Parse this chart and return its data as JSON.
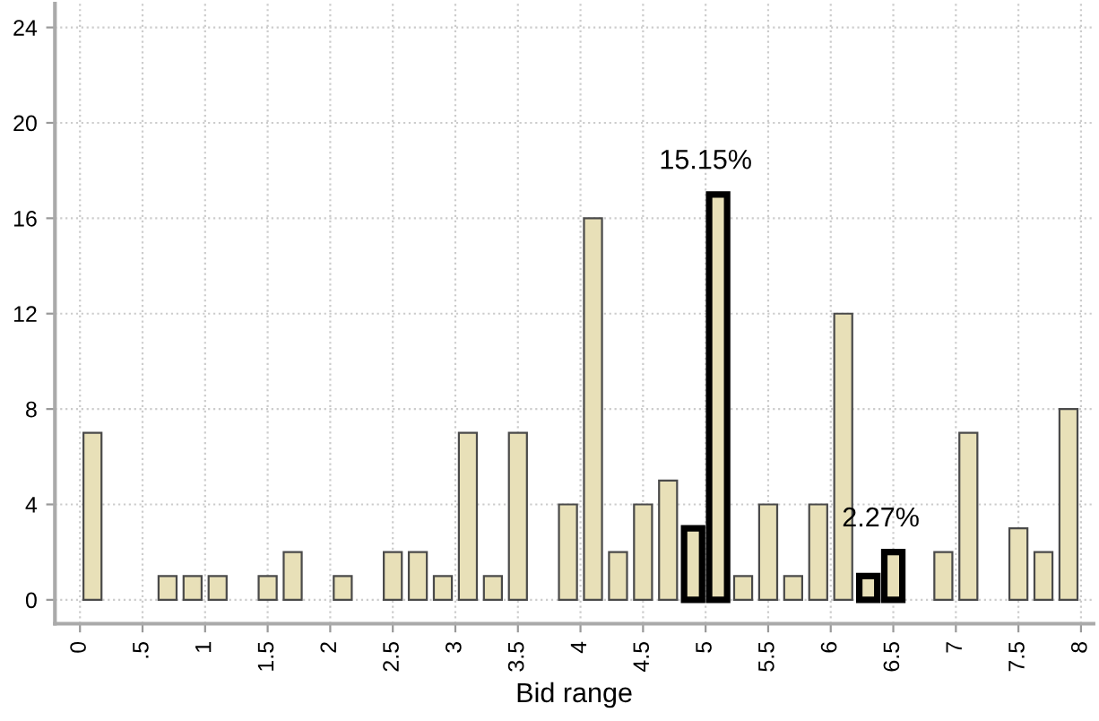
{
  "chart_data": {
    "type": "histogram",
    "xlabel": "Bid range",
    "bins": [
      0,
      0.2,
      0.4,
      0.6,
      0.8,
      1,
      1.2,
      1.4,
      1.6,
      1.8,
      2,
      2.2,
      2.4,
      2.6,
      2.8,
      3,
      3.2,
      3.4,
      3.6,
      3.8,
      4,
      4.2,
      4.4,
      4.6,
      4.8,
      5,
      5.2,
      5.4,
      5.6,
      5.8,
      6,
      6.2,
      6.4,
      6.6,
      6.8,
      7,
      7.2,
      7.4,
      7.6,
      7.8,
      8
    ],
    "series": [
      {
        "color": "#e8e0b8",
        "values": [
          7,
          0,
          0,
          1,
          1,
          1,
          0,
          1,
          2,
          0,
          1,
          0,
          2,
          2,
          1,
          7,
          1,
          7,
          0,
          4,
          16,
          2,
          4,
          5,
          null,
          null,
          1,
          4,
          1,
          4,
          12,
          null,
          null,
          0,
          2,
          7,
          0,
          3,
          2,
          8
        ]
      },
      {
        "color": "#e8e0b8",
        "values": [
          null,
          null,
          null,
          null,
          null,
          null,
          null,
          null,
          null,
          null,
          null,
          null,
          null,
          null,
          null,
          null,
          null,
          null,
          null,
          null,
          null,
          null,
          null,
          null,
          3,
          17,
          null,
          null,
          null,
          null,
          null,
          1,
          2,
          null,
          null,
          null,
          null,
          null,
          null,
          null
        ]
      }
    ],
    "xlim": [
      -0.2,
      8.1
    ],
    "ylim": [
      -1,
      25
    ],
    "xticks": [
      0,
      {
        "value": 0.5,
        "label": ".5"
      },
      1,
      1.5,
      2,
      2.5,
      3,
      3.5,
      4,
      4.5,
      5,
      5.5,
      6,
      6.5,
      7,
      7.5,
      8
    ],
    "yticks": [
      0,
      4,
      8,
      12,
      16,
      20,
      24
    ],
    "grid": true,
    "annotations": [
      {
        "text": "15.15%",
        "x": 5.0,
        "y": 17
      },
      {
        "text": "2.27%",
        "x": 6.4,
        "y": 2
      }
    ]
  }
}
